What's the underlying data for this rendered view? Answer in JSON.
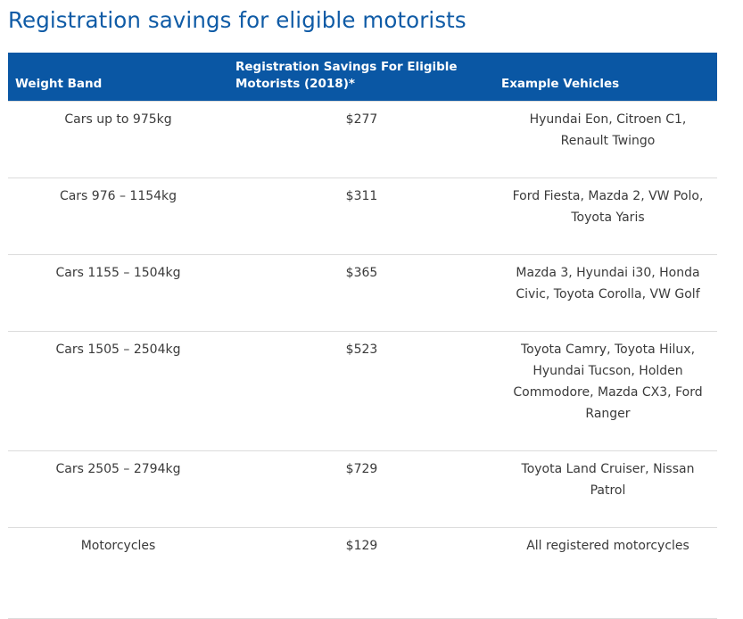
{
  "page": {
    "title": "Registration savings for eligible motorists"
  },
  "table": {
    "headers": {
      "weight_band": "Weight Band",
      "savings": "Registration Savings For Eligible Motorists (2018)*",
      "examples": "Example Vehicles"
    },
    "rows": [
      {
        "band": "Cars up to 975kg",
        "saving": "$277",
        "examples": "Hyundai Eon, Citroen C1, Renault Twingo"
      },
      {
        "band": "Cars 976 – 1154kg",
        "saving": "$311",
        "examples": "Ford Fiesta, Mazda 2, VW Polo, Toyota Yaris"
      },
      {
        "band": "Cars 1155 – 1504kg",
        "saving": "$365",
        "examples": "Mazda 3, Hyundai i30, Honda Civic, Toyota Corolla, VW Golf"
      },
      {
        "band": "Cars 1505 – 2504kg",
        "saving": "$523",
        "examples": "Toyota Camry, Toyota Hilux, Hyundai Tucson, Holden Commodore, Mazda CX3, Ford Ranger"
      },
      {
        "band": "Cars 2505 – 2794kg",
        "saving": "$729",
        "examples": "Toyota Land Cruiser, Nissan Patrol"
      },
      {
        "band": "Motorcycles",
        "saving": "$129",
        "examples": "All registered motorcycles"
      }
    ]
  },
  "colors": {
    "title": "#0f5ba6",
    "header_bg": "#0a57a4",
    "header_text": "#ffffff",
    "body_text": "#3a3a3a",
    "row_divider": "#dcdcdc"
  }
}
